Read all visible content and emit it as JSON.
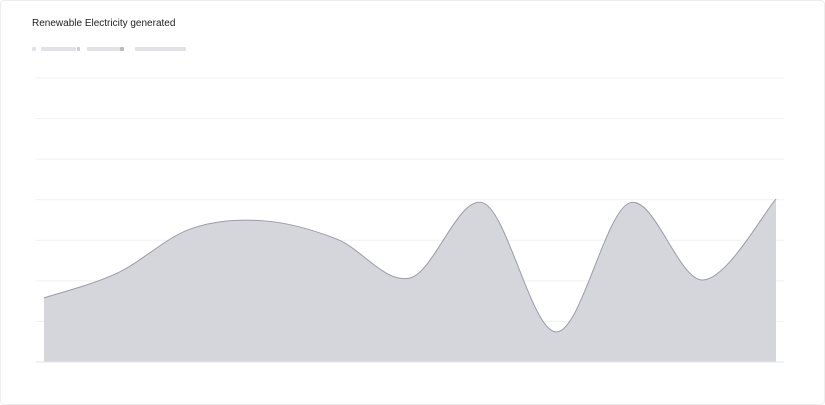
{
  "chart_data": {
    "type": "area",
    "title": "Renewable Electricity generated",
    "categories": [
      null,
      null,
      null,
      null,
      null,
      null,
      null,
      null,
      null,
      null,
      null
    ],
    "series": [
      {
        "color": "#d5d5dc",
        "values": [
          1.58,
          2.19,
          3.28,
          3.48,
          3.03,
          2.07,
          3.92,
          0.74,
          3.92,
          2.02,
          4.02
        ]
      }
    ],
    "ylim": [
      0,
      7
    ],
    "yticks": [
      1,
      2,
      3,
      4,
      5,
      6,
      7
    ],
    "grid": true
  }
}
